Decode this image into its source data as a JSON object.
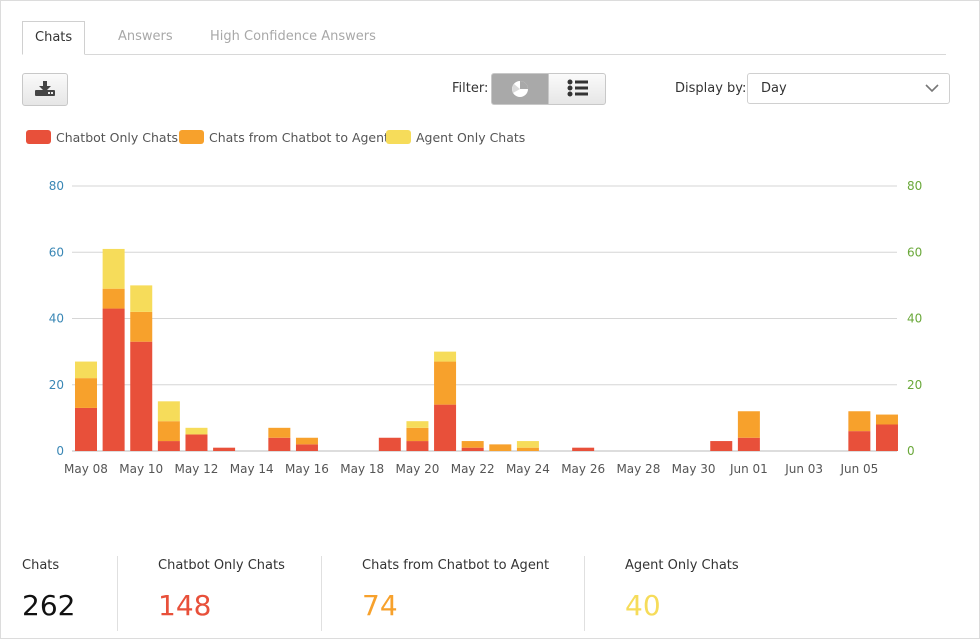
{
  "tabs": [
    {
      "label": "Chats",
      "active": true
    },
    {
      "label": "Answers",
      "active": false
    },
    {
      "label": "High Confidence Answers",
      "active": false
    }
  ],
  "toolbar": {
    "download_icon": "download-icon",
    "filter_label": "Filter:",
    "filter_options": [
      "chart-view-icon",
      "list-view-icon"
    ],
    "display_label": "Display by:",
    "display_value": "Day"
  },
  "colors": {
    "chatbot_only": "#e8503a",
    "chatbot_to_agent": "#f7a12c",
    "agent_only": "#f6dc5a",
    "left_axis": "#3a87b5",
    "right_axis": "#6aa83a"
  },
  "chart_data": {
    "type": "bar",
    "stacked": true,
    "ylim": [
      0,
      80
    ],
    "yticks": [
      0,
      20,
      40,
      60,
      80
    ],
    "grid": true,
    "legend_position": "top-left",
    "x_tick_labels": [
      "May 08",
      "May 10",
      "May 12",
      "May 14",
      "May 16",
      "May 18",
      "May 20",
      "May 22",
      "May 24",
      "May 26",
      "May 28",
      "May 30",
      "Jun 01",
      "Jun 03",
      "Jun 05"
    ],
    "categories": [
      "May 08",
      "May 09",
      "May 10",
      "May 11",
      "May 12",
      "May 13",
      "May 14",
      "May 15",
      "May 16",
      "May 17",
      "May 18",
      "May 19",
      "May 20",
      "May 21",
      "May 22",
      "May 23",
      "May 24",
      "May 25",
      "May 26",
      "May 27",
      "May 28",
      "May 29",
      "May 30",
      "May 31",
      "Jun 01",
      "Jun 02",
      "Jun 03",
      "Jun 04",
      "Jun 05",
      "Jun 06"
    ],
    "series": [
      {
        "name": "Chatbot Only Chats",
        "values": [
          13,
          43,
          33,
          3,
          5,
          1,
          0,
          4,
          2,
          0,
          0,
          4,
          3,
          14,
          1,
          0,
          0,
          0,
          1,
          0,
          0,
          0,
          0,
          3,
          4,
          0,
          0,
          0,
          6,
          8
        ]
      },
      {
        "name": "Chats from Chatbot to Agent",
        "values": [
          9,
          6,
          9,
          6,
          0,
          0,
          0,
          3,
          2,
          0,
          0,
          0,
          4,
          13,
          2,
          2,
          1,
          0,
          0,
          0,
          0,
          0,
          0,
          0,
          8,
          0,
          0,
          0,
          6,
          3
        ]
      },
      {
        "name": "Agent Only Chats",
        "values": [
          5,
          12,
          8,
          6,
          2,
          0,
          0,
          0,
          0,
          0,
          0,
          0,
          2,
          3,
          0,
          0,
          2,
          0,
          0,
          0,
          0,
          0,
          0,
          0,
          0,
          0,
          0,
          0,
          0,
          0
        ]
      }
    ]
  },
  "summary": [
    {
      "label": "Chats",
      "value": "262",
      "color": "#111111"
    },
    {
      "label": "Chatbot Only Chats",
      "value": "148",
      "color": "#e8503a"
    },
    {
      "label": "Chats from Chatbot to Agent",
      "value": "74",
      "color": "#f7a12c"
    },
    {
      "label": "Agent Only Chats",
      "value": "40",
      "color": "#f6dc5a"
    }
  ]
}
